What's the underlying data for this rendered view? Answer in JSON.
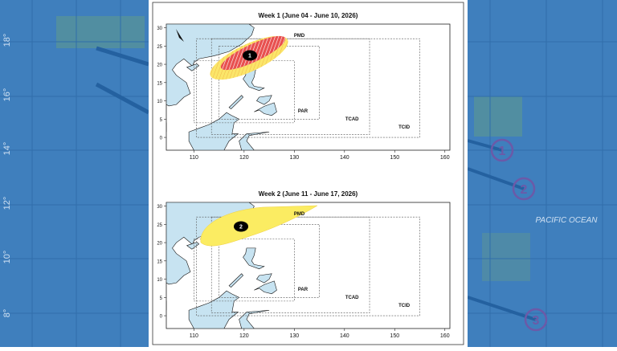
{
  "background": {
    "lat_labels": [
      "18°",
      "16°",
      "14°",
      "12°",
      "10°",
      "8°"
    ],
    "ocean_label": "PACIFIC OCEAN",
    "markers": [
      "1",
      "2",
      "3"
    ]
  },
  "panels": [
    {
      "title": "Week 1 (June 04 - June 10, 2026)",
      "xlim": [
        104.5,
        161
      ],
      "ylim": [
        -3.5,
        31
      ],
      "xticks": [
        110,
        120,
        130,
        140,
        150,
        160
      ],
      "yticks": [
        0,
        5,
        10,
        15,
        20,
        25,
        30
      ],
      "area_labels": [
        "PMD",
        "PAR",
        "TCAD",
        "TCID"
      ],
      "cluster_label": "1"
    },
    {
      "title": "Week 2 (June 11 - June 17, 2026)",
      "xlim": [
        104.5,
        161
      ],
      "ylim": [
        -3.5,
        31
      ],
      "xticks": [
        110,
        120,
        130,
        140,
        150,
        160
      ],
      "yticks": [
        0,
        5,
        10,
        15,
        20,
        25,
        30
      ],
      "area_labels": [
        "PMD",
        "PAR",
        "TCAD",
        "TCID"
      ],
      "cluster_label": "2"
    }
  ]
}
